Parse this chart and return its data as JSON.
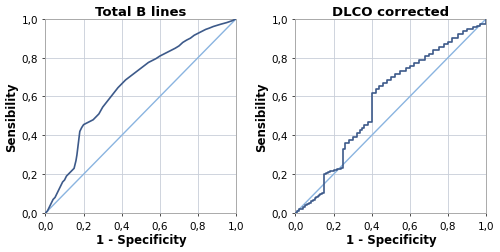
{
  "title_left": "Total B lines",
  "title_right": "DLCO corrected",
  "xlabel": "1 - Specificity",
  "ylabel": "Sensibility",
  "xlim": [
    0.0,
    1.0
  ],
  "ylim": [
    0.0,
    1.0
  ],
  "xticks": [
    0.0,
    0.2,
    0.4,
    0.6,
    0.8,
    1.0
  ],
  "yticks": [
    0.0,
    0.2,
    0.4,
    0.6,
    0.8,
    1.0
  ],
  "tick_labels": [
    "0,0",
    "0,2",
    "0,4",
    "0,6",
    "0,8",
    "1,0"
  ],
  "roc_color": "#3d5a8a",
  "diag_color": "#8ab4e0",
  "grid_color": "#c8cdd8",
  "bg_color": "#ffffff",
  "title_fontsize": 9.5,
  "label_fontsize": 8.5,
  "tick_fontsize": 7.5,
  "roc_linewidth": 1.2,
  "diag_linewidth": 1.0,
  "roc1_x": [
    0.0,
    0.01,
    0.02,
    0.03,
    0.04,
    0.05,
    0.06,
    0.07,
    0.08,
    0.09,
    0.1,
    0.11,
    0.12,
    0.13,
    0.14,
    0.15,
    0.155,
    0.16,
    0.165,
    0.17,
    0.175,
    0.18,
    0.19,
    0.2,
    0.21,
    0.22,
    0.23,
    0.24,
    0.25,
    0.26,
    0.27,
    0.28,
    0.3,
    0.32,
    0.34,
    0.36,
    0.38,
    0.4,
    0.42,
    0.44,
    0.46,
    0.48,
    0.5,
    0.52,
    0.54,
    0.56,
    0.58,
    0.6,
    0.62,
    0.64,
    0.66,
    0.68,
    0.7,
    0.72,
    0.74,
    0.76,
    0.78,
    0.8,
    0.82,
    0.84,
    0.86,
    0.88,
    0.9,
    0.92,
    0.95,
    0.98,
    1.0
  ],
  "roc1_y": [
    0.0,
    0.01,
    0.03,
    0.05,
    0.07,
    0.08,
    0.1,
    0.12,
    0.14,
    0.16,
    0.17,
    0.19,
    0.2,
    0.21,
    0.22,
    0.23,
    0.25,
    0.27,
    0.3,
    0.34,
    0.38,
    0.42,
    0.44,
    0.455,
    0.46,
    0.465,
    0.47,
    0.475,
    0.48,
    0.49,
    0.5,
    0.51,
    0.545,
    0.57,
    0.595,
    0.62,
    0.645,
    0.665,
    0.685,
    0.7,
    0.715,
    0.73,
    0.745,
    0.76,
    0.775,
    0.785,
    0.795,
    0.808,
    0.818,
    0.828,
    0.838,
    0.848,
    0.86,
    0.878,
    0.89,
    0.9,
    0.915,
    0.925,
    0.935,
    0.945,
    0.952,
    0.96,
    0.966,
    0.972,
    0.98,
    0.99,
    1.0
  ],
  "roc2_x": [
    0.0,
    0.0,
    0.01,
    0.02,
    0.03,
    0.04,
    0.05,
    0.06,
    0.07,
    0.08,
    0.09,
    0.1,
    0.105,
    0.11,
    0.115,
    0.12,
    0.125,
    0.13,
    0.14,
    0.15,
    0.16,
    0.17,
    0.18,
    0.2,
    0.22,
    0.24,
    0.25,
    0.26,
    0.28,
    0.3,
    0.32,
    0.34,
    0.35,
    0.36,
    0.38,
    0.4,
    0.42,
    0.44,
    0.46,
    0.48,
    0.5,
    0.52,
    0.55,
    0.58,
    0.6,
    0.62,
    0.65,
    0.68,
    0.7,
    0.72,
    0.75,
    0.78,
    0.8,
    0.82,
    0.85,
    0.88,
    0.9,
    0.93,
    0.95,
    0.97,
    1.0
  ],
  "roc2_y": [
    0.0,
    0.0,
    0.01,
    0.02,
    0.02,
    0.03,
    0.04,
    0.045,
    0.05,
    0.06,
    0.065,
    0.07,
    0.075,
    0.08,
    0.085,
    0.09,
    0.095,
    0.1,
    0.105,
    0.2,
    0.205,
    0.21,
    0.215,
    0.22,
    0.225,
    0.23,
    0.33,
    0.36,
    0.375,
    0.39,
    0.41,
    0.425,
    0.44,
    0.455,
    0.47,
    0.62,
    0.64,
    0.655,
    0.67,
    0.685,
    0.7,
    0.715,
    0.73,
    0.745,
    0.755,
    0.77,
    0.79,
    0.81,
    0.82,
    0.84,
    0.855,
    0.87,
    0.88,
    0.9,
    0.92,
    0.935,
    0.945,
    0.955,
    0.965,
    0.975,
    1.0
  ]
}
